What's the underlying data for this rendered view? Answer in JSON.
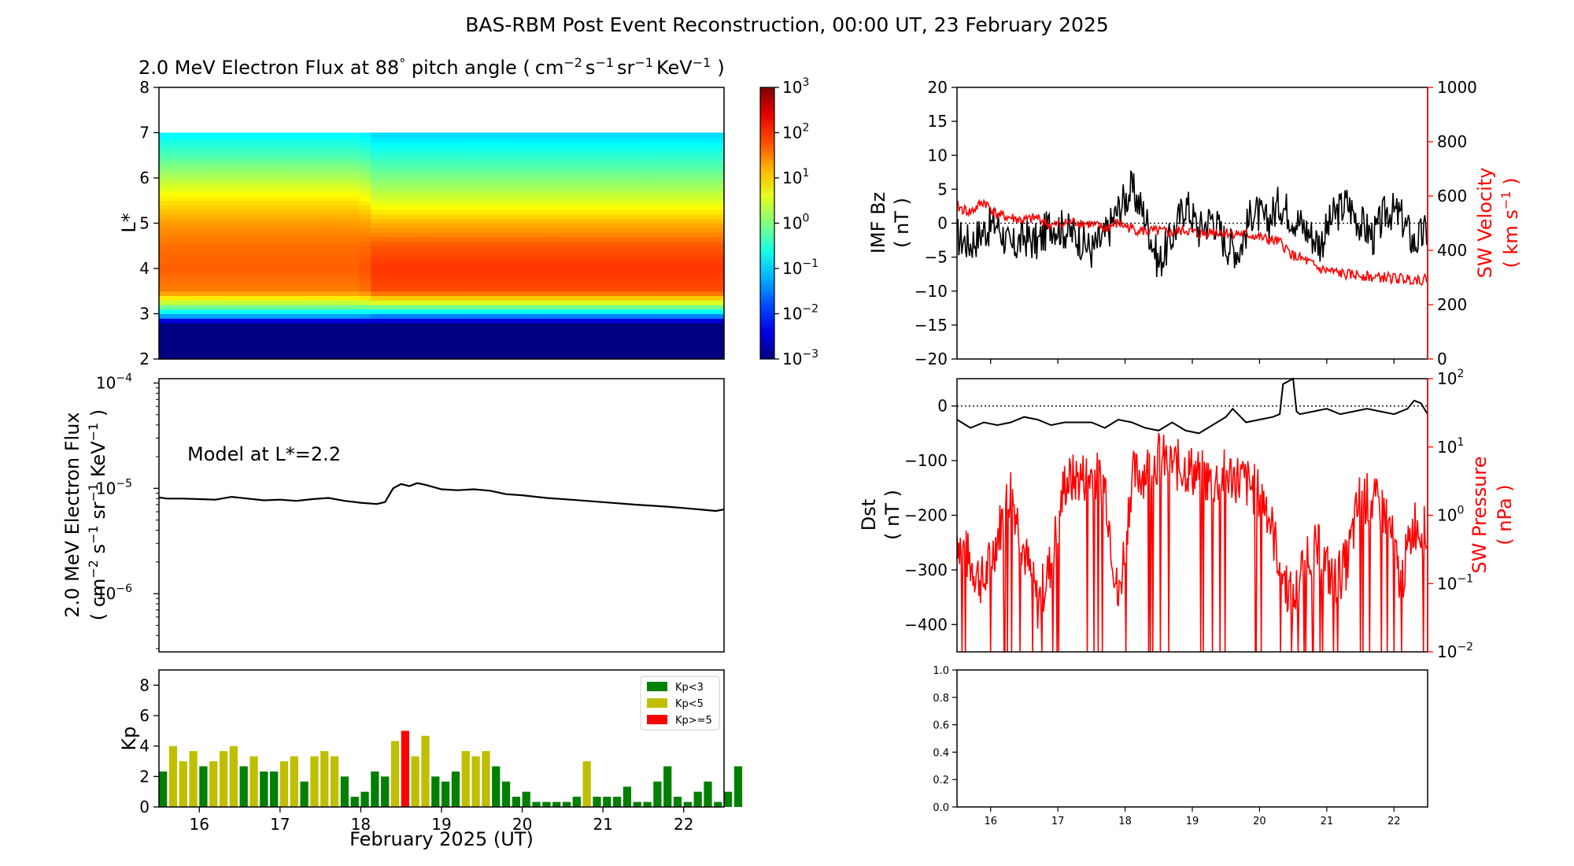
{
  "title": "BAS-RBM Post Event Reconstruction, 00:00 UT, 23 February 2025",
  "colors": {
    "flux_line": "#000000",
    "sw": "#ff0000",
    "kp_low": "#008000",
    "kp_mid": "#bfbf00",
    "kp_high": "#ff0000"
  },
  "heatmap": {
    "title_main": "2.0 MeV Electron Flux at 88",
    "title_deg": "°",
    "title_pitch": " pitch angle (",
    "title_units": [
      "cm",
      "−2",
      "s",
      "−1",
      "sr",
      "−1",
      "KeV",
      "−1",
      ")"
    ],
    "ylabel": "L*",
    "yticks": [
      "2",
      "3",
      "4",
      "5",
      "6",
      "7",
      "8"
    ],
    "colorbar_ticks": [
      {
        "base": "10",
        "exp": "3"
      },
      {
        "base": "10",
        "exp": "2"
      },
      {
        "base": "10",
        "exp": "1"
      },
      {
        "base": "10",
        "exp": "0"
      },
      {
        "base": "10",
        "exp": "−1"
      },
      {
        "base": "10",
        "exp": "−2"
      },
      {
        "base": "10",
        "exp": "−3"
      }
    ],
    "colorbar_exp_range": [
      -3,
      3
    ],
    "y_range": [
      2,
      8
    ]
  },
  "flux": {
    "annotation": "Model at L*=2.2",
    "ylabel1": "2.0 MeV Electron Flux",
    "ylabel2": [
      "( cm",
      "−2",
      " s",
      "−1",
      " sr",
      "−1",
      " KeV",
      "−1",
      " )"
    ],
    "yticks": [
      {
        "base": "10",
        "exp": "−4"
      },
      {
        "base": "10",
        "exp": "−5"
      },
      {
        "base": "10",
        "exp": "−6"
      }
    ]
  },
  "kp": {
    "ylabel": "Kp",
    "yticks": [
      "0",
      "2",
      "4",
      "6",
      "8"
    ],
    "legend": [
      {
        "key": "low",
        "label": "Kp<3"
      },
      {
        "key": "mid",
        "label": "Kp<5"
      },
      {
        "key": "high",
        "label": "Kp>=5"
      }
    ]
  },
  "time_axis": {
    "xlabel": "February 2025 (UT)",
    "days": [
      "16",
      "17",
      "18",
      "19",
      "20",
      "21",
      "22"
    ],
    "range_days": [
      15.5,
      22.5
    ]
  },
  "imf": {
    "ylabel1": "IMF Bz",
    "ylabel2": "( nT )",
    "yticks": [
      "20",
      "15",
      "10",
      "5",
      "0",
      "−5",
      "−10",
      "−15",
      "−20"
    ],
    "ylim": [
      -20,
      20
    ],
    "right_ylabel1": "SW Velocity",
    "right_ylabel2": [
      "( km s",
      "−1",
      " )"
    ],
    "right_yticks": [
      "1000",
      "800",
      "600",
      "400",
      "200",
      "0"
    ],
    "right_ylim": [
      0,
      1000
    ]
  },
  "dst": {
    "ylabel1": "Dst",
    "ylabel2": "( nT )",
    "yticks": [
      "0",
      "−100",
      "−200",
      "−300",
      "−400"
    ],
    "ylim": [
      -450,
      50
    ],
    "right_ylabel1": "SW Pressure",
    "right_ylabel2": "( nPa )",
    "right_yticks": [
      {
        "base": "10",
        "exp": "2"
      },
      {
        "base": "10",
        "exp": "1"
      },
      {
        "base": "10",
        "exp": "0"
      },
      {
        "base": "10",
        "exp": "−1"
      },
      {
        "base": "10",
        "exp": "−2"
      }
    ],
    "right_ylim_exp": [
      -2,
      2
    ]
  },
  "empty_panel": {
    "yticks": [
      "1.0",
      "0.8",
      "0.6",
      "0.4",
      "0.2",
      "0.0"
    ]
  },
  "chart_data": [
    {
      "type": "heatmap",
      "title": "2.0 MeV Electron Flux at 88° pitch angle ( cm−2 s−1 sr−1 KeV−1 )",
      "ylabel": "L*",
      "xlim_days": [
        15.5,
        22.5
      ],
      "ylim": [
        2,
        8
      ],
      "colorbar_log_range": [
        -3,
        3
      ],
      "data_top_L": 7.0,
      "log_flux_profile_vs_L": {
        "L": [
          2.0,
          2.8,
          2.95,
          3.2,
          3.5,
          4.0,
          4.5,
          5.0,
          5.5,
          6.0,
          6.5,
          7.0
        ],
        "before_Feb18": [
          -3,
          -3,
          -1.3,
          0.2,
          1.5,
          1.7,
          1.6,
          1.35,
          0.9,
          0.3,
          -0.3,
          -0.8
        ],
        "after_Feb18": [
          -3,
          -3,
          -1.5,
          0.3,
          1.8,
          1.95,
          1.75,
          1.2,
          0.55,
          0.0,
          -0.5,
          -1.0
        ]
      }
    },
    {
      "type": "line",
      "title": "",
      "annotation": "Model at L*=2.2",
      "ylabel": "2.0 MeV Electron Flux ( cm−2 s−1 sr−1 KeV−1 )",
      "yscale": "log",
      "ylim": [
        2.8e-07,
        0.00011
      ],
      "x_days": [
        15.5,
        15.6,
        15.8,
        16.0,
        16.2,
        16.4,
        16.6,
        16.8,
        17.0,
        17.2,
        17.4,
        17.6,
        17.8,
        18.0,
        18.2,
        18.3,
        18.4,
        18.5,
        18.6,
        18.7,
        18.8,
        19.0,
        19.2,
        19.4,
        19.6,
        19.8,
        20.0,
        20.3,
        20.6,
        21.0,
        21.4,
        21.8,
        22.0,
        22.2,
        22.4,
        22.5
      ],
      "y_flux": [
        8.2e-06,
        8e-06,
        8e-06,
        7.9e-06,
        7.8e-06,
        8.3e-06,
        8e-06,
        7.7e-06,
        7.8e-06,
        7.6e-06,
        7.9e-06,
        8.1e-06,
        7.6e-06,
        7.3e-06,
        7.1e-06,
        7.4e-06,
        1e-05,
        1.1e-05,
        1.05e-05,
        1.12e-05,
        1.08e-05,
        9.8e-06,
        9.6e-06,
        9.8e-06,
        9.5e-06,
        8.8e-06,
        8.6e-06,
        8.1e-06,
        7.8e-06,
        7.4e-06,
        7e-06,
        6.7e-06,
        6.5e-06,
        6.3e-06,
        6.1e-06,
        6.3e-06
      ]
    },
    {
      "type": "bar",
      "title": "",
      "ylabel": "Kp",
      "xlabel": "February 2025 (UT)",
      "ylim": [
        0,
        9
      ],
      "bar_width_days": 0.1,
      "x_days_start": 15.5,
      "interval_days": 0.125,
      "kp": [
        2.33,
        4.0,
        3.0,
        3.67,
        2.67,
        3.0,
        3.67,
        4.0,
        2.67,
        3.33,
        2.33,
        2.33,
        3.0,
        3.33,
        1.67,
        3.33,
        3.67,
        3.33,
        2.0,
        0.67,
        1.0,
        2.33,
        2.0,
        4.33,
        5.0,
        3.33,
        4.67,
        2.0,
        1.67,
        2.33,
        3.67,
        3.33,
        3.67,
        2.67,
        1.67,
        0.67,
        1.0,
        0.33,
        0.33,
        0.33,
        0.33,
        0.67,
        3.0,
        0.67,
        0.67,
        0.67,
        1.33,
        0.33,
        0.33,
        1.67,
        2.67,
        0.67,
        0.33,
        1.0,
        1.67,
        0.33,
        1.0,
        2.67
      ],
      "legend": [
        "Kp<3",
        "Kp<5",
        "Kp>=5"
      ]
    },
    {
      "type": "line",
      "title": "",
      "ylabel": "IMF Bz ( nT )",
      "ylim": [
        -20,
        20
      ],
      "series": [
        {
          "name": "",
          "axis": "left",
          "color": "#000000",
          "x_days": [
            15.5,
            15.7,
            15.9,
            16.1,
            16.3,
            16.5,
            16.7,
            16.9,
            17.1,
            17.3,
            17.5,
            17.7,
            17.9,
            18.1,
            18.3,
            18.5,
            18.7,
            18.9,
            19.1,
            19.3,
            19.5,
            19.7,
            19.9,
            20.1,
            20.3,
            20.5,
            20.7,
            20.9,
            21.1,
            21.3,
            21.5,
            21.7,
            21.9,
            22.1,
            22.3,
            22.5
          ],
          "y": [
            -2,
            -3,
            -1,
            0,
            -4,
            -2,
            -3,
            0,
            -1,
            -2,
            -4,
            -2,
            2,
            5,
            1,
            -6,
            -2,
            3,
            -1,
            1,
            -3,
            -4,
            2,
            0,
            3,
            1,
            -1,
            -3,
            1,
            3,
            0,
            -2,
            2,
            1,
            -3,
            -1
          ]
        },
        {
          "name": "",
          "axis": "right",
          "color": "#ff0000",
          "right_ylabel": "SW Velocity ( km s−1 )",
          "right_ylim": [
            0,
            1000
          ],
          "x_days": [
            15.5,
            15.7,
            15.9,
            16.1,
            16.3,
            16.5,
            16.7,
            16.9,
            17.1,
            17.3,
            17.5,
            17.7,
            17.9,
            18.1,
            18.3,
            18.5,
            18.7,
            18.9,
            19.1,
            19.3,
            19.5,
            19.7,
            19.9,
            20.1,
            20.3,
            20.5,
            20.7,
            20.9,
            21.1,
            21.3,
            21.5,
            21.7,
            21.9,
            22.1,
            22.3,
            22.5
          ],
          "y": [
            560,
            540,
            580,
            530,
            520,
            510,
            520,
            490,
            500,
            505,
            495,
            480,
            500,
            480,
            470,
            470,
            465,
            475,
            460,
            470,
            465,
            460,
            455,
            440,
            430,
            380,
            360,
            330,
            320,
            310,
            310,
            300,
            300,
            295,
            295,
            290
          ]
        }
      ]
    },
    {
      "type": "line",
      "title": "",
      "ylabel": "Dst ( nT )",
      "ylim": [
        -450,
        50
      ],
      "series": [
        {
          "name": "",
          "axis": "left",
          "color": "#000000",
          "x_days": [
            15.5,
            15.7,
            15.9,
            16.1,
            16.3,
            16.5,
            16.7,
            16.9,
            17.1,
            17.3,
            17.5,
            17.7,
            17.9,
            18.1,
            18.3,
            18.5,
            18.7,
            18.9,
            19.1,
            19.3,
            19.5,
            19.6,
            19.8,
            20.0,
            20.2,
            20.3,
            20.35,
            20.5,
            20.55,
            20.6,
            20.8,
            21.0,
            21.2,
            21.4,
            21.6,
            21.8,
            22.0,
            22.2,
            22.3,
            22.4,
            22.5
          ],
          "y": [
            -25,
            -40,
            -30,
            -35,
            -30,
            -20,
            -25,
            -35,
            -30,
            -30,
            -30,
            -40,
            -25,
            -30,
            -40,
            -45,
            -30,
            -45,
            -50,
            -35,
            -20,
            -5,
            -30,
            -25,
            -20,
            -15,
            40,
            50,
            -10,
            -15,
            -10,
            -5,
            -15,
            -10,
            -5,
            -10,
            -15,
            -5,
            10,
            5,
            -15
          ]
        },
        {
          "name": "",
          "axis": "right",
          "color": "#ff0000",
          "right_ylabel": "SW Pressure ( nPa )",
          "right_yscale": "log",
          "right_ylim": [
            0.01,
            100
          ],
          "x_days": [
            15.5,
            15.7,
            15.9,
            16.1,
            16.3,
            16.5,
            16.7,
            16.9,
            17.1,
            17.3,
            17.5,
            17.7,
            17.9,
            18.1,
            18.3,
            18.5,
            18.7,
            18.9,
            19.1,
            19.3,
            19.5,
            19.7,
            19.9,
            20.1,
            20.3,
            20.5,
            20.7,
            20.9,
            21.1,
            21.3,
            21.5,
            21.7,
            21.9,
            22.1,
            22.3,
            22.5
          ],
          "y": [
            0.5,
            0.2,
            0.1,
            0.5,
            2.5,
            0.3,
            0.05,
            0.2,
            3.0,
            3.5,
            4.0,
            3.0,
            0.05,
            3.5,
            4.5,
            7.0,
            5.5,
            5.0,
            4.0,
            3.0,
            4.0,
            3.5,
            2.5,
            1.5,
            0.2,
            0.05,
            0.3,
            0.3,
            0.1,
            0.2,
            2.0,
            1.5,
            1.0,
            0.1,
            0.8,
            0.5
          ]
        }
      ]
    }
  ]
}
